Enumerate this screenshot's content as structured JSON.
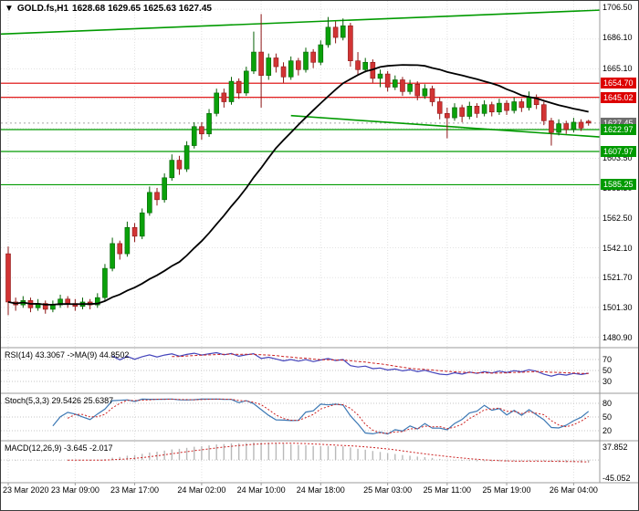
{
  "header": {
    "arrow": "▼",
    "symbol": "GOLD.fs,H1",
    "ohlc": "1628.68 1629.65 1625.63 1627.45"
  },
  "colors": {
    "up": "#0aa10a",
    "up_border": "#056105",
    "down": "#d23434",
    "down_border": "#8d1414",
    "ma": "#000000",
    "resistance": "#dd0000",
    "support": "#009a00",
    "trendline": "#009a00",
    "bid_line": "#a5a5a5",
    "bid_badge": "#6e6e6e",
    "rsi": "#4444bb",
    "rsi_ma": "#cc2222",
    "stoch_k": "#3c78b4",
    "stoch_d": "#cc2222",
    "macd_hist": "#b9b9b9",
    "macd_signal": "#cc2222",
    "grid": "#e2e2e2",
    "panel_level": "#c4c4c4",
    "separator": "#9b9b9b",
    "text": "#000000"
  },
  "price_scale": {
    "labels": [
      {
        "text": "1706.50",
        "value": 1706.5
      },
      {
        "text": "1686.10",
        "value": 1686.1
      },
      {
        "text": "1665.10",
        "value": 1665.1
      },
      {
        "text": "1603.50",
        "value": 1603.5
      },
      {
        "text": "1583.30",
        "value": 1583.3
      },
      {
        "text": "1562.50",
        "value": 1562.5
      },
      {
        "text": "1542.10",
        "value": 1542.1
      },
      {
        "text": "1521.70",
        "value": 1521.7
      },
      {
        "text": "1501.30",
        "value": 1501.3
      },
      {
        "text": "1480.90",
        "value": 1480.9
      }
    ],
    "badges": [
      {
        "text": "1654.70",
        "value": 1654.7,
        "color": "#dd0000"
      },
      {
        "text": "1645.02",
        "value": 1645.02,
        "color": "#dd0000"
      },
      {
        "text": "1627.45",
        "value": 1627.45,
        "color": "#6e6e6e"
      },
      {
        "text": "1622.97",
        "value": 1622.97,
        "color": "#009a00"
      },
      {
        "text": "1607.97",
        "value": 1607.97,
        "color": "#009a00"
      },
      {
        "text": "1585.25",
        "value": 1585.25,
        "color": "#009a00"
      }
    ]
  },
  "time_scale": {
    "labels": [
      {
        "text": "23 Mar 2020",
        "bar": 0
      },
      {
        "text": "23 Mar 09:00",
        "bar": 9
      },
      {
        "text": "23 Mar 17:00",
        "bar": 17
      },
      {
        "text": "24 Mar 02:00",
        "bar": 26
      },
      {
        "text": "24 Mar 10:00",
        "bar": 34
      },
      {
        "text": "24 Mar 18:00",
        "bar": 42
      },
      {
        "text": "25 Mar 03:00",
        "bar": 51
      },
      {
        "text": "25 Mar 11:00",
        "bar": 59
      },
      {
        "text": "25 Mar 19:00",
        "bar": 67
      },
      {
        "text": "26 Mar 04:00",
        "bar": 76
      }
    ]
  },
  "panels": {
    "rsi": {
      "label": "RSI(14) 43.3067 ->MA(9) 44.8502",
      "range": [
        10,
        90
      ],
      "levels": [
        {
          "text": "70",
          "value": 70
        },
        {
          "text": "50",
          "value": 50
        },
        {
          "text": "30",
          "value": 30
        }
      ]
    },
    "stoch": {
      "label": "Stoch(5,3,3) 29.5426 25.6387",
      "range": [
        0,
        100
      ],
      "levels": [
        {
          "text": "80",
          "value": 80
        },
        {
          "text": "50",
          "value": 50
        },
        {
          "text": "20",
          "value": 20
        }
      ]
    },
    "macd": {
      "label": "MACD(12,26,9) -3.645 -2.017",
      "range": [
        -45.052,
        37.852
      ],
      "scale_labels": [
        {
          "text": "37.852",
          "value": 37.852
        },
        {
          "text": "-45.052",
          "value": -45.052
        }
      ]
    }
  },
  "chart_data": {
    "type": "candlestick",
    "title": "GOLD.fs,H1",
    "symbol": "GOLD.fs",
    "timeframe": "H1",
    "ylim": [
      1475,
      1711
    ],
    "y_grid": {
      "base": 1480.9,
      "step": 20.4,
      "count": 12
    },
    "bid": {
      "value": 1627.45
    },
    "horizontal_lines": [
      {
        "value": 1654.7,
        "color": "#dd0000",
        "kind": "resistance"
      },
      {
        "value": 1645.02,
        "color": "#dd0000",
        "kind": "resistance"
      },
      {
        "value": 1622.97,
        "color": "#009a00",
        "kind": "support"
      },
      {
        "value": 1607.97,
        "color": "#009a00",
        "kind": "support"
      },
      {
        "value": 1585.25,
        "color": "#009a00",
        "kind": "support"
      }
    ],
    "trendlines": [
      {
        "from_bar": -1,
        "from_value": 1688.3,
        "to_bar": 85,
        "to_value": 1705.8
      },
      {
        "from_bar": 38,
        "from_value": 1632.5,
        "to_bar": 85,
        "to_value": 1616.0
      }
    ],
    "indicators": {
      "ma_period": 24,
      "rsi": {
        "period": 14,
        "ma": 9,
        "value": 43.3067,
        "ma_value": 44.8502
      },
      "stoch": {
        "params": [
          5,
          3,
          3
        ],
        "k": 29.5426,
        "d": 25.6387
      },
      "macd": {
        "params": [
          12,
          26,
          9
        ],
        "main": -3.645,
        "signal": -2.017
      }
    },
    "ohlc": [
      [
        1538,
        1543,
        1496,
        1505
      ],
      [
        1505,
        1508,
        1499,
        1503
      ],
      [
        1503,
        1509,
        1501,
        1506
      ],
      [
        1506,
        1508,
        1498,
        1501
      ],
      [
        1501,
        1507,
        1499,
        1504
      ],
      [
        1504,
        1506,
        1497,
        1500
      ],
      [
        1500,
        1506,
        1498,
        1503
      ],
      [
        1503,
        1510,
        1501,
        1507
      ],
      [
        1507,
        1509,
        1501,
        1504
      ],
      [
        1504,
        1507,
        1499,
        1502
      ],
      [
        1502,
        1508,
        1500,
        1505
      ],
      [
        1505,
        1507,
        1500,
        1503
      ],
      [
        1503,
        1511,
        1501,
        1508
      ],
      [
        1508,
        1531,
        1506,
        1528
      ],
      [
        1528,
        1549,
        1526,
        1545
      ],
      [
        1545,
        1547,
        1534,
        1538
      ],
      [
        1538,
        1560,
        1536,
        1556
      ],
      [
        1556,
        1559,
        1546,
        1550
      ],
      [
        1550,
        1569,
        1548,
        1566
      ],
      [
        1566,
        1584,
        1564,
        1580
      ],
      [
        1580,
        1583,
        1571,
        1575
      ],
      [
        1575,
        1593,
        1573,
        1590
      ],
      [
        1590,
        1606,
        1588,
        1602
      ],
      [
        1602,
        1605,
        1592,
        1596
      ],
      [
        1596,
        1615,
        1594,
        1612
      ],
      [
        1612,
        1628,
        1610,
        1625
      ],
      [
        1625,
        1628,
        1616,
        1620
      ],
      [
        1620,
        1637,
        1618,
        1634
      ],
      [
        1634,
        1651,
        1632,
        1648
      ],
      [
        1648,
        1651,
        1638,
        1642
      ],
      [
        1642,
        1659,
        1640,
        1656
      ],
      [
        1656,
        1658,
        1644,
        1648
      ],
      [
        1648,
        1666,
        1646,
        1663
      ],
      [
        1663,
        1690,
        1661,
        1676
      ],
      [
        1676,
        1702,
        1638,
        1660
      ],
      [
        1660,
        1675,
        1657,
        1672
      ],
      [
        1672,
        1675,
        1662,
        1666
      ],
      [
        1666,
        1669,
        1655,
        1659
      ],
      [
        1659,
        1673,
        1657,
        1670
      ],
      [
        1670,
        1672,
        1660,
        1664
      ],
      [
        1664,
        1679,
        1662,
        1676
      ],
      [
        1676,
        1678,
        1665,
        1669
      ],
      [
        1669,
        1684,
        1667,
        1681
      ],
      [
        1681,
        1700,
        1679,
        1693
      ],
      [
        1693,
        1697,
        1682,
        1686
      ],
      [
        1686,
        1699,
        1684,
        1694
      ],
      [
        1694,
        1696,
        1666,
        1670
      ],
      [
        1670,
        1676,
        1660,
        1664
      ],
      [
        1664,
        1672,
        1662,
        1669
      ],
      [
        1669,
        1671,
        1655,
        1658
      ],
      [
        1658,
        1664,
        1652,
        1661
      ],
      [
        1661,
        1663,
        1649,
        1652
      ],
      [
        1652,
        1660,
        1650,
        1657
      ],
      [
        1657,
        1659,
        1646,
        1649
      ],
      [
        1649,
        1657,
        1647,
        1654
      ],
      [
        1654,
        1656,
        1643,
        1646
      ],
      [
        1646,
        1654,
        1644,
        1651
      ],
      [
        1651,
        1653,
        1639,
        1642
      ],
      [
        1642,
        1645,
        1630,
        1634
      ],
      [
        1634,
        1638,
        1617,
        1631
      ],
      [
        1631,
        1641,
        1629,
        1638
      ],
      [
        1638,
        1640,
        1628,
        1632
      ],
      [
        1632,
        1642,
        1630,
        1639
      ],
      [
        1639,
        1641,
        1631,
        1634
      ],
      [
        1634,
        1643,
        1632,
        1640
      ],
      [
        1640,
        1642,
        1632,
        1635
      ],
      [
        1635,
        1644,
        1633,
        1641
      ],
      [
        1641,
        1643,
        1633,
        1636
      ],
      [
        1636,
        1645,
        1634,
        1642
      ],
      [
        1642,
        1644,
        1635,
        1638
      ],
      [
        1638,
        1649,
        1636,
        1645
      ],
      [
        1645,
        1647,
        1637,
        1640
      ],
      [
        1640,
        1642,
        1626,
        1629
      ],
      [
        1629,
        1631,
        1612,
        1621
      ],
      [
        1621,
        1630,
        1619,
        1627
      ],
      [
        1627,
        1629,
        1620,
        1623
      ],
      [
        1623,
        1631,
        1621,
        1628
      ],
      [
        1628,
        1630,
        1622,
        1624
      ],
      [
        1628.68,
        1629.65,
        1625.63,
        1627.45
      ]
    ]
  }
}
